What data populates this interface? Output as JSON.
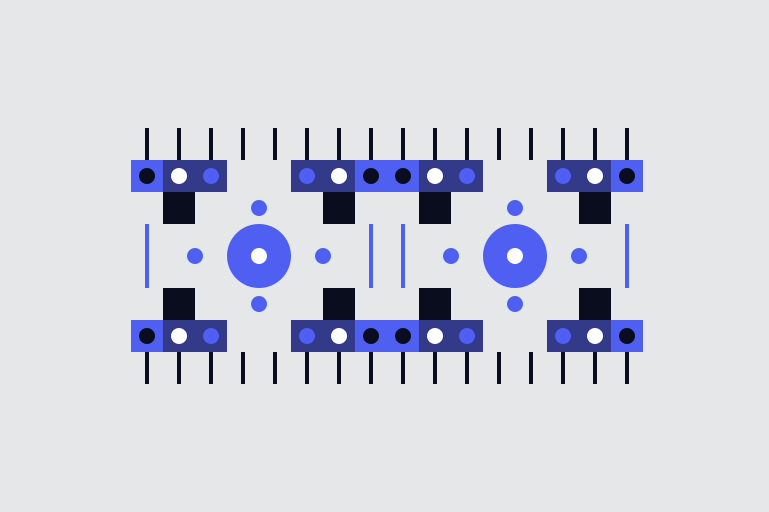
{
  "artwork": {
    "kind": "abstract geometric illustration",
    "palette": {
      "background": "#e6e7e9",
      "bright_blue": "#4f5ff2",
      "medium_blue": "#3e4fc9",
      "dark_blue": "#343a8a",
      "ink": "#0a0d1d",
      "white": "#ffffff"
    },
    "dot_pattern_top_row": [
      "ink",
      "white",
      "bright_blue",
      "bright_blue",
      "white",
      "ink",
      "ink",
      "white",
      "bright_blue",
      "bright_blue",
      "white",
      "ink"
    ],
    "dot_pattern_bottom_row": [
      "ink",
      "white",
      "bright_blue",
      "bright_blue",
      "white",
      "ink",
      "ink",
      "white",
      "bright_blue",
      "bright_blue",
      "white",
      "ink"
    ],
    "motif_count": 2
  }
}
